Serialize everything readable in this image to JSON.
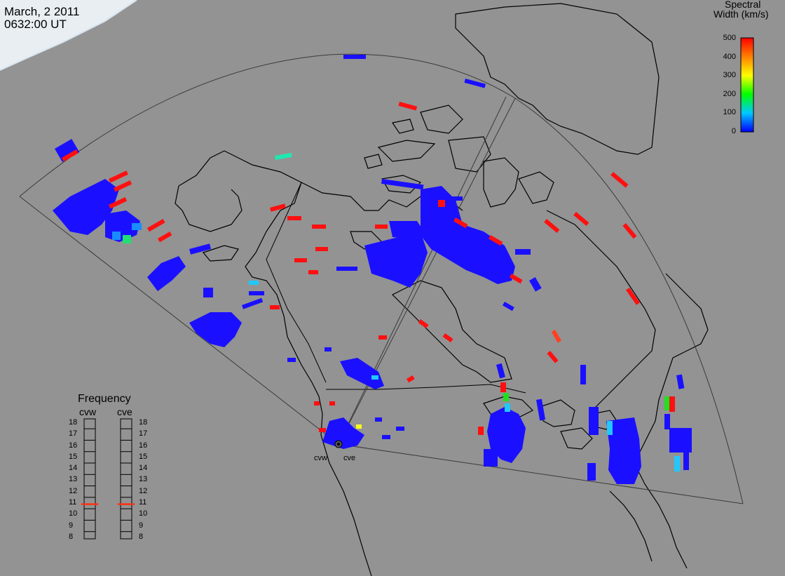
{
  "header": {
    "date": "March, 2 2011",
    "time": "0632:00 UT"
  },
  "legend": {
    "title_line1": "Spectral",
    "title_line2": "Width (km/s)",
    "ticks": [
      "500",
      "400",
      "300",
      "200",
      "100",
      "0"
    ],
    "range": [
      0,
      500
    ],
    "colors": [
      "#0000ff",
      "#00c8ff",
      "#00ff00",
      "#ffff00",
      "#ff8000",
      "#ff0000"
    ]
  },
  "frequency_panel": {
    "title": "Frequency",
    "radar_left": "cvw",
    "radar_right": "cve",
    "scale": [
      "18",
      "17",
      "16",
      "15",
      "14",
      "13",
      "12",
      "11",
      "10",
      "9",
      "8"
    ],
    "marker_left": 10.9,
    "marker_right": 10.9
  },
  "radars": {
    "left_label": "cvw",
    "right_label": "cve"
  },
  "colors": {
    "background": "#939393",
    "land_outline": "#000000",
    "fov_outline": "#3a3a3a",
    "scatter_low": "#1a10ff",
    "scatter_high": "#ff1010"
  }
}
